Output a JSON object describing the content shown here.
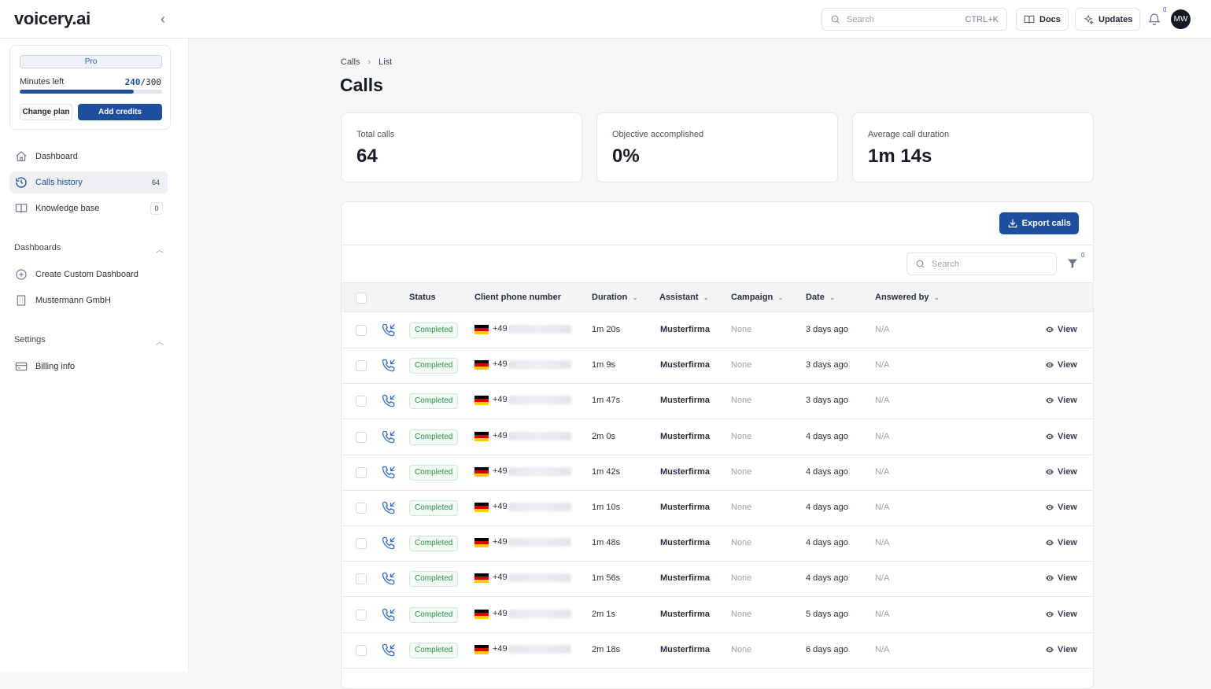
{
  "app": {
    "logo": "voicery.ai"
  },
  "topbar": {
    "search_placeholder": "Search",
    "search_shortcut": "CTRL+K",
    "docs_label": "Docs",
    "updates_label": "Updates",
    "notifications_count": "0",
    "avatar_initials": "MW"
  },
  "plan": {
    "badge": "Pro",
    "minutes_label": "Minutes left",
    "minutes_used": "240",
    "minutes_total": "/300",
    "minutes_fraction": 0.8,
    "change_plan": "Change plan",
    "add_credits": "Add credits"
  },
  "sidebar": {
    "items": [
      {
        "label": "Dashboard",
        "icon": "home-icon"
      },
      {
        "label": "Calls history",
        "icon": "history-icon",
        "count": "64",
        "active": true
      },
      {
        "label": "Knowledge base",
        "icon": "book-icon",
        "count": "0"
      }
    ],
    "dashboards_section": "Dashboards",
    "dashboards_items": [
      {
        "label": "Create Custom Dashboard",
        "icon": "plus-circle-icon"
      },
      {
        "label": "Mustermann GmbH",
        "icon": "building-icon"
      }
    ],
    "settings_section": "Settings",
    "settings_items": [
      {
        "label": "Billing info",
        "icon": "credit-card-icon"
      }
    ]
  },
  "page": {
    "breadcrumb": [
      "Calls",
      "List"
    ],
    "title": "Calls"
  },
  "stats": [
    {
      "label": "Total calls",
      "value": "64"
    },
    {
      "label": "Objective accomplished",
      "value": "0%"
    },
    {
      "label": "Average call duration",
      "value": "1m 14s"
    }
  ],
  "table": {
    "export_label": "Export calls",
    "search_placeholder": "Search",
    "filter_count": "0",
    "headers": {
      "status": "Status",
      "phone": "Client phone number",
      "duration": "Duration",
      "assistant": "Assistant",
      "campaign": "Campaign",
      "date": "Date",
      "answered_by": "Answered by"
    },
    "view_label": "View",
    "rows": [
      {
        "status": "Completed",
        "phone_prefix": "+49",
        "duration": "1m 20s",
        "assistant": "Musterfirma",
        "campaign": "None",
        "date": "3 days ago",
        "answered_by": "N/A"
      },
      {
        "status": "Completed",
        "phone_prefix": "+49",
        "duration": "1m 9s",
        "assistant": "Musterfirma",
        "campaign": "None",
        "date": "3 days ago",
        "answered_by": "N/A"
      },
      {
        "status": "Completed",
        "phone_prefix": "+49",
        "duration": "1m 47s",
        "assistant": "Musterfirma",
        "campaign": "None",
        "date": "3 days ago",
        "answered_by": "N/A"
      },
      {
        "status": "Completed",
        "phone_prefix": "+49",
        "duration": "2m 0s",
        "assistant": "Musterfirma",
        "campaign": "None",
        "date": "4 days ago",
        "answered_by": "N/A"
      },
      {
        "status": "Completed",
        "phone_prefix": "+49",
        "duration": "1m 42s",
        "assistant": "Musterfirma",
        "campaign": "None",
        "date": "4 days ago",
        "answered_by": "N/A"
      },
      {
        "status": "Completed",
        "phone_prefix": "+49",
        "duration": "1m 10s",
        "assistant": "Musterfirma",
        "campaign": "None",
        "date": "4 days ago",
        "answered_by": "N/A"
      },
      {
        "status": "Completed",
        "phone_prefix": "+49",
        "duration": "1m 48s",
        "assistant": "Musterfirma",
        "campaign": "None",
        "date": "4 days ago",
        "answered_by": "N/A"
      },
      {
        "status": "Completed",
        "phone_prefix": "+49",
        "duration": "1m 56s",
        "assistant": "Musterfirma",
        "campaign": "None",
        "date": "4 days ago",
        "answered_by": "N/A"
      },
      {
        "status": "Completed",
        "phone_prefix": "+49",
        "duration": "2m 1s",
        "assistant": "Musterfirma",
        "campaign": "None",
        "date": "5 days ago",
        "answered_by": "N/A"
      },
      {
        "status": "Completed",
        "phone_prefix": "+49",
        "duration": "2m 18s",
        "assistant": "Musterfirma",
        "campaign": "None",
        "date": "6 days ago",
        "answered_by": "N/A"
      }
    ]
  },
  "colors": {
    "accent": "#1f4f9c",
    "status_green": "#2f8a4a",
    "flag_black": "#000000",
    "flag_red": "#dd0000",
    "flag_gold": "#ffce00"
  }
}
